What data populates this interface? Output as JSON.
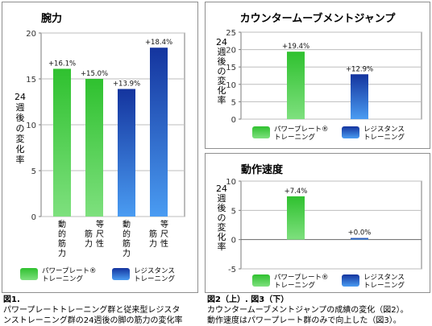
{
  "chart_data": [
    {
      "type": "bar",
      "title": "腕力",
      "ylabel": "24週後の変化率",
      "categories": [
        "動的筋力",
        "等尺性筋力",
        "動的筋力",
        "等尺性筋力"
      ],
      "tick_labels": [
        [
          "動",
          "的",
          "筋",
          "力"
        ],
        [
          "等",
          "尺",
          "性",
          "筋",
          "力"
        ],
        [
          "動",
          "的",
          "筋",
          "力"
        ],
        [
          "等",
          "尺",
          "性",
          "筋",
          "力"
        ]
      ],
      "values": [
        16.1,
        15.0,
        13.9,
        18.4
      ],
      "data_labels": [
        "+16.1%",
        "+15.0%",
        "+13.9%",
        "+18.4%"
      ],
      "bar_series": [
        0,
        0,
        1,
        1
      ],
      "series": [
        {
          "name": "パワープレート®トレーニング",
          "label_lines": [
            "パワープレート®",
            "トレーニング"
          ],
          "color": "#22bb22"
        },
        {
          "name": "レジスタンストレーニング",
          "label_lines": [
            "レジスタンス",
            "トレーニング"
          ],
          "color": "#1f4fc8"
        }
      ],
      "yticks": [
        0,
        5,
        10,
        15,
        20
      ],
      "ylim": [
        0,
        20
      ],
      "grid": true,
      "legend": "bottom"
    },
    {
      "type": "bar",
      "title": "カウンタームーブメントジャンプ",
      "ylabel": "24週後の変化率",
      "categories": [
        "パワープレート®トレーニング",
        "レジスタンストレーニング"
      ],
      "values": [
        19.4,
        12.9
      ],
      "data_labels": [
        "+19.4%",
        "+12.9%"
      ],
      "bar_series": [
        0,
        1
      ],
      "yticks": [
        0,
        5,
        10,
        15,
        20,
        25
      ],
      "ylim": [
        0,
        25
      ],
      "grid": true,
      "legend": "bottom"
    },
    {
      "type": "bar",
      "title": "動作速度",
      "ylabel": "24週後の変化率",
      "categories": [
        "パワープレート®トレーニング",
        "レジスタンストレーニング"
      ],
      "values": [
        7.4,
        0.0
      ],
      "data_labels": [
        "+7.4%",
        "+0.0%"
      ],
      "bar_series": [
        0,
        1
      ],
      "yticks": [
        -5,
        0,
        5,
        10
      ],
      "ylim": [
        -5,
        10
      ],
      "grid": true,
      "legend": "bottom"
    }
  ],
  "captions": {
    "fig1_heading": "図1.",
    "fig1_line1": "パワープレートトレーニング群と従来型レジスタ",
    "fig1_line2": "ンストレーニング群の24週後の脚の筋力の変化率",
    "fig23_heading": "図2（上）. 図3（下）",
    "fig23_line1": "カウンタームーブメントジャンプの成績の変化（図2）。",
    "fig23_line2": "動作速度はパワープレート群のみで向上した（図3）。"
  }
}
